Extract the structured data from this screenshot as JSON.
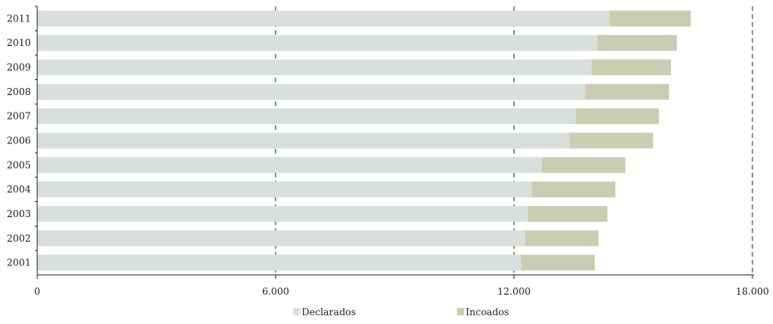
{
  "chart_data": {
    "type": "bar",
    "orientation": "horizontal",
    "stacked": true,
    "categories": [
      "2011",
      "2010",
      "2009",
      "2008",
      "2007",
      "2006",
      "2005",
      "2004",
      "2003",
      "2002",
      "2001"
    ],
    "series": [
      {
        "name": "Declarados",
        "color": "#d9e0db",
        "values": [
          14400,
          14100,
          13950,
          13800,
          13550,
          13400,
          12700,
          12450,
          12350,
          12280,
          12180
        ]
      },
      {
        "name": "Incoados",
        "color": "#cbcdb2",
        "values": [
          2050,
          2000,
          2000,
          2100,
          2100,
          2100,
          2100,
          2100,
          2000,
          1850,
          1850
        ]
      }
    ],
    "xlim": [
      0,
      18000
    ],
    "xticks": [
      0,
      6000,
      12000,
      18000
    ],
    "xtick_labels": [
      "0",
      "6.000",
      "12.000",
      "18.000"
    ],
    "grid": "vertical dashed at 6.000, 12.000, 18.000",
    "legend_position": "bottom-center",
    "title": "",
    "xlabel": "",
    "ylabel": ""
  }
}
